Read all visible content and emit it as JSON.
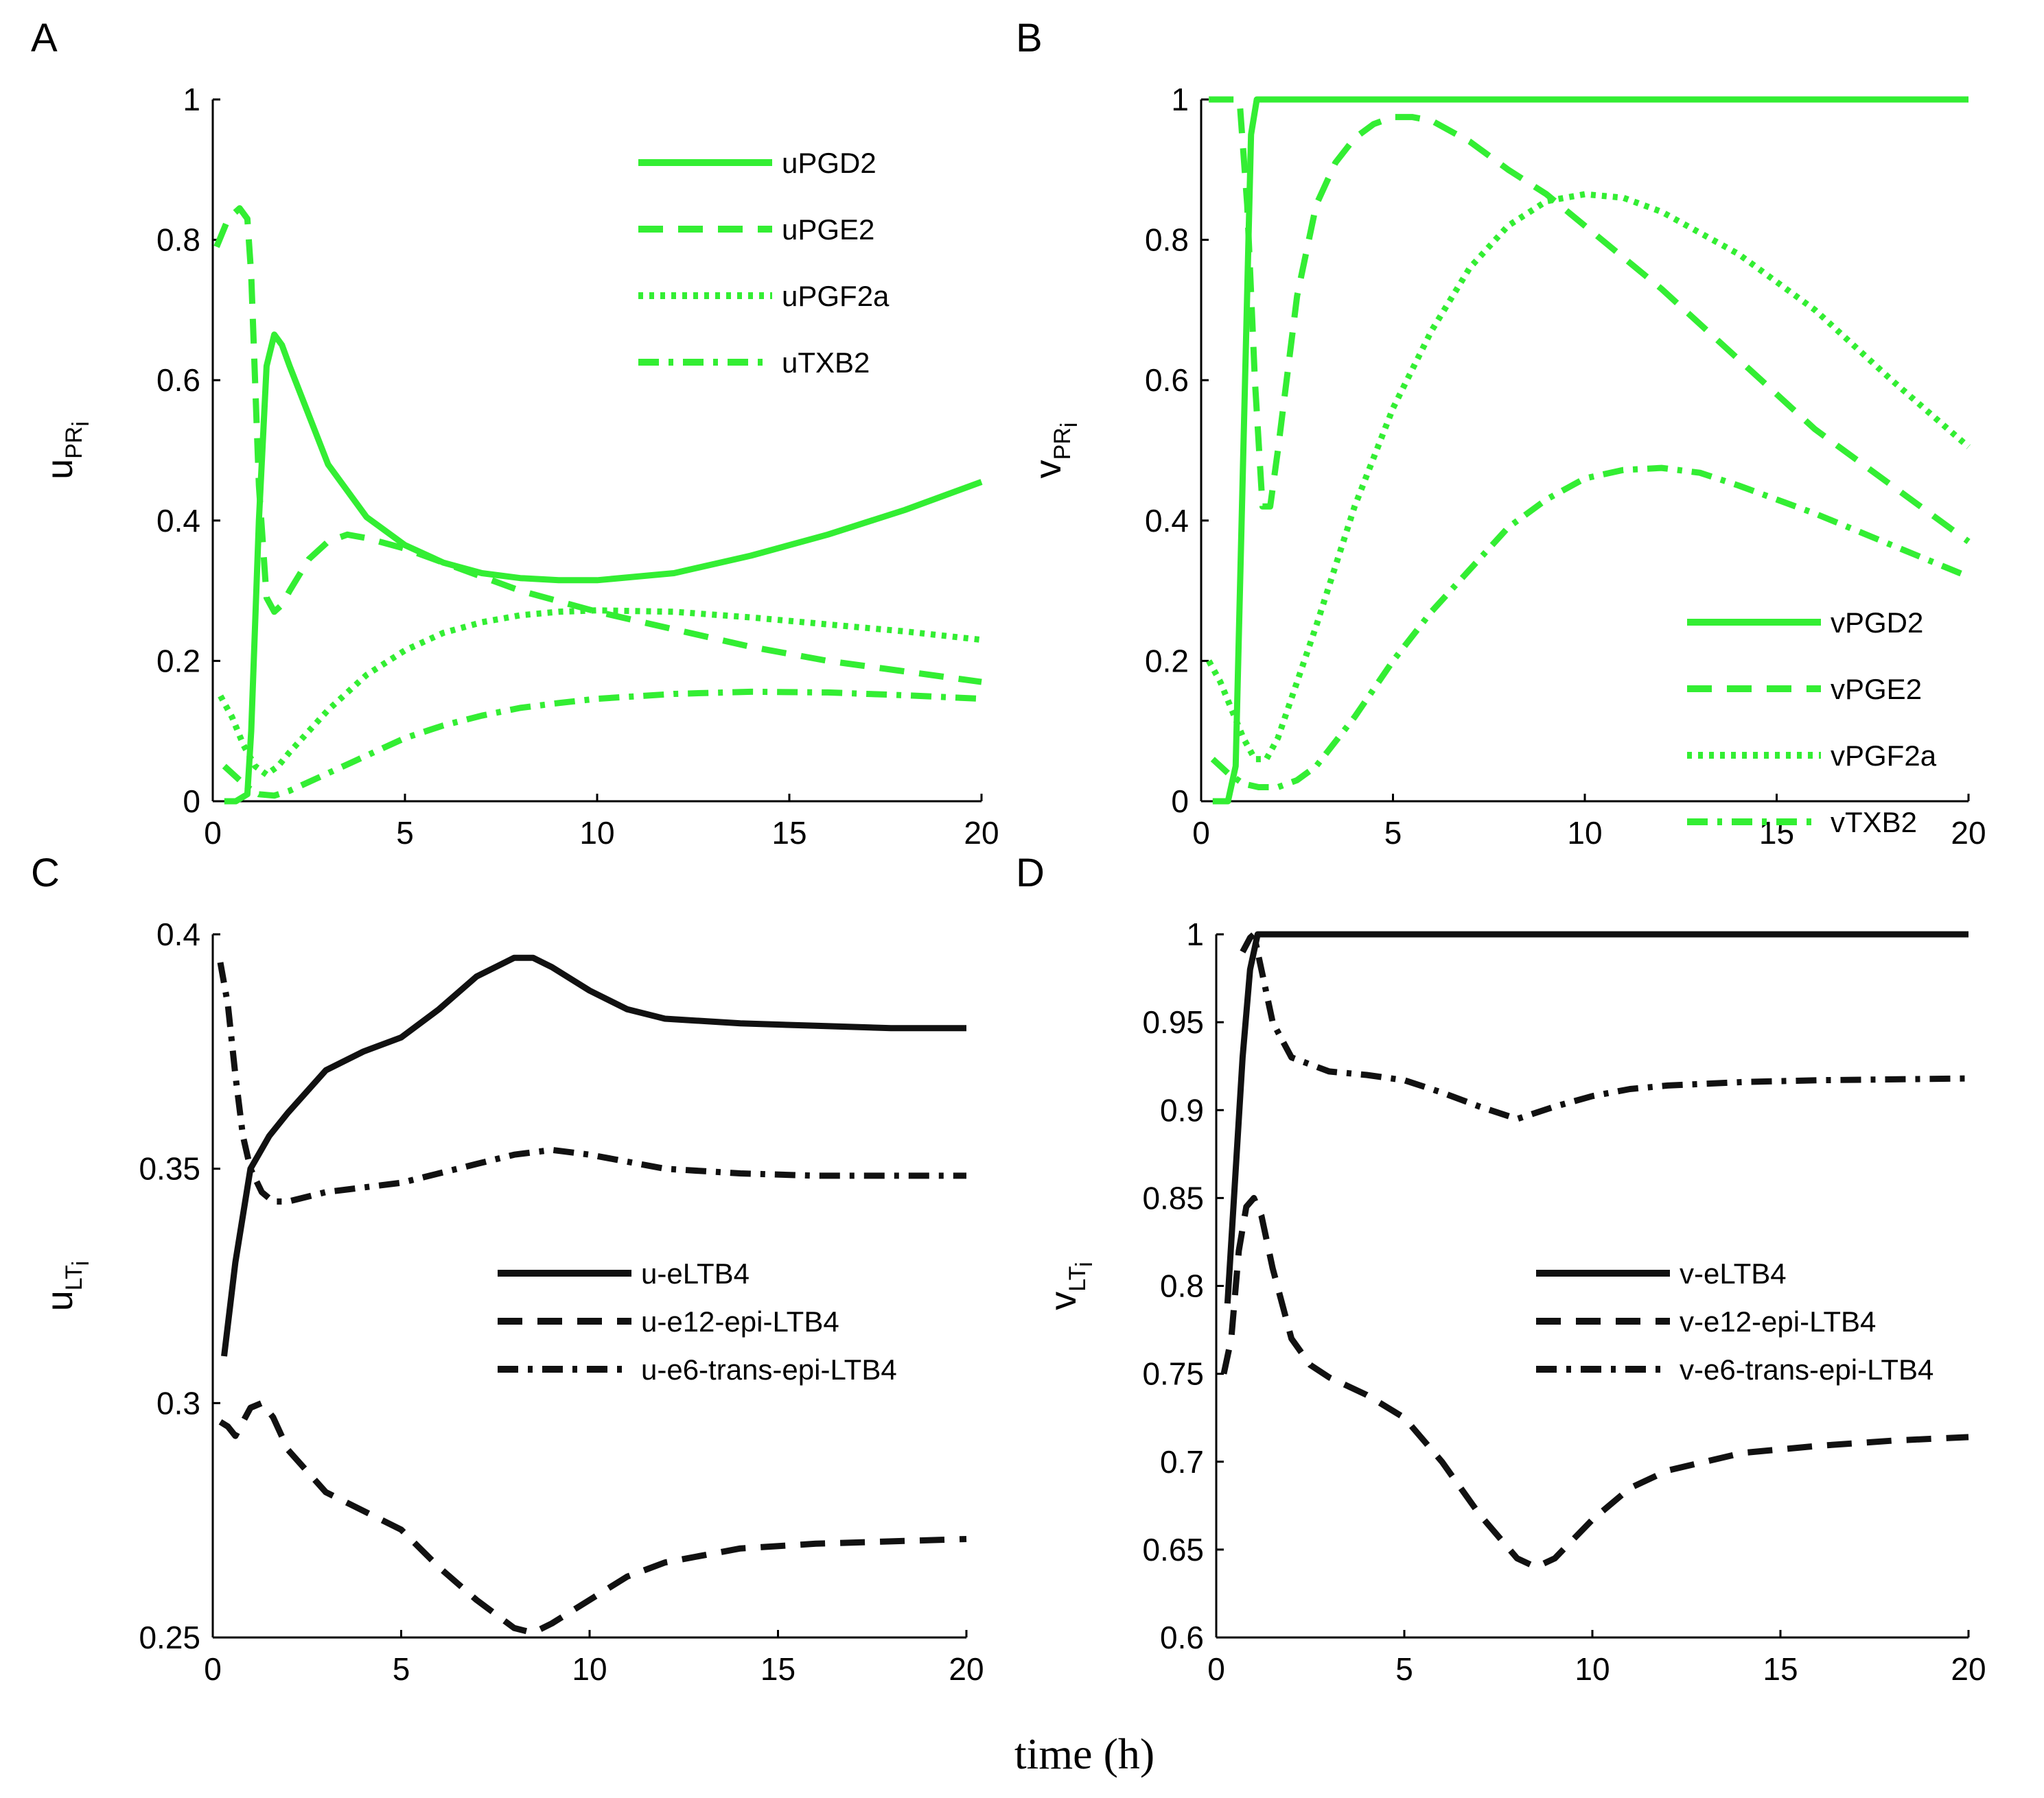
{
  "figure": {
    "xlabel": "time (h)"
  },
  "colors": {
    "green": "#33ee33",
    "black": "#111111"
  },
  "chart_data": [
    {
      "type": "line",
      "panel": "A",
      "ylabel": "u",
      "ylabel_sub": "PR",
      "ylabel_subsub": "i",
      "xlim": [
        0,
        20
      ],
      "ylim": [
        0,
        1
      ],
      "xticks": [
        0,
        5,
        10,
        15,
        20
      ],
      "yticks": [
        0,
        0.2,
        0.4,
        0.6,
        0.8,
        1
      ],
      "ytick_labels": [
        "0",
        "0.2",
        "0.4",
        "0.6",
        "0.8",
        "1"
      ],
      "color": "#33ee33",
      "legend": "top-right",
      "series": [
        {
          "name": "uPGD2",
          "style": "solid",
          "x": [
            0.3,
            0.6,
            0.9,
            1.0,
            1.2,
            1.4,
            1.6,
            1.8,
            2,
            2.5,
            3,
            4,
            5,
            6,
            7,
            8,
            9,
            10,
            12,
            14,
            16,
            18,
            20
          ],
          "y": [
            0.0,
            0.0,
            0.01,
            0.1,
            0.4,
            0.62,
            0.665,
            0.65,
            0.62,
            0.55,
            0.48,
            0.405,
            0.365,
            0.34,
            0.325,
            0.318,
            0.315,
            0.315,
            0.325,
            0.35,
            0.38,
            0.415,
            0.455
          ]
        },
        {
          "name": "uPGE2",
          "style": "dashed",
          "x": [
            0.1,
            0.4,
            0.7,
            0.9,
            1.0,
            1.1,
            1.2,
            1.4,
            1.6,
            1.8,
            2,
            2.5,
            3,
            3.5,
            4,
            5,
            6,
            8,
            10,
            12,
            14,
            16,
            18,
            20
          ],
          "y": [
            0.79,
            0.83,
            0.845,
            0.83,
            0.75,
            0.6,
            0.45,
            0.29,
            0.27,
            0.28,
            0.3,
            0.345,
            0.37,
            0.38,
            0.375,
            0.36,
            0.34,
            0.3,
            0.27,
            0.245,
            0.22,
            0.2,
            0.185,
            0.17
          ]
        },
        {
          "name": "uPGF2a",
          "style": "dotted",
          "x": [
            0.2,
            0.5,
            0.8,
            1.1,
            1.4,
            1.7,
            2,
            2.5,
            3,
            4,
            5,
            6,
            7,
            8,
            9,
            10,
            12,
            14,
            16,
            18,
            20
          ],
          "y": [
            0.15,
            0.12,
            0.08,
            0.05,
            0.038,
            0.05,
            0.07,
            0.1,
            0.13,
            0.18,
            0.215,
            0.24,
            0.255,
            0.265,
            0.27,
            0.272,
            0.27,
            0.262,
            0.252,
            0.242,
            0.23
          ]
        },
        {
          "name": "uTXB2",
          "style": "dashdot",
          "x": [
            0.3,
            0.6,
            0.9,
            1.2,
            1.6,
            2,
            3,
            4,
            5,
            6,
            7,
            8,
            9,
            10,
            12,
            14,
            16,
            18,
            20
          ],
          "y": [
            0.05,
            0.035,
            0.02,
            0.01,
            0.008,
            0.015,
            0.04,
            0.065,
            0.09,
            0.108,
            0.122,
            0.133,
            0.14,
            0.146,
            0.153,
            0.156,
            0.155,
            0.151,
            0.146
          ]
        }
      ]
    },
    {
      "type": "line",
      "panel": "B",
      "ylabel": "v",
      "ylabel_sub": "PR",
      "ylabel_subsub": "i",
      "xlim": [
        0,
        20
      ],
      "ylim": [
        0,
        1
      ],
      "xticks": [
        0,
        5,
        10,
        15,
        20
      ],
      "yticks": [
        0,
        0.2,
        0.4,
        0.6,
        0.8,
        1
      ],
      "ytick_labels": [
        "0",
        "0.2",
        "0.4",
        "0.6",
        "0.8",
        "1"
      ],
      "color": "#33ee33",
      "legend": "bottom-right",
      "series": [
        {
          "name": "vPGD2",
          "style": "solid",
          "x": [
            0.3,
            0.7,
            0.9,
            1.1,
            1.3,
            1.45,
            2,
            5,
            10,
            15,
            20
          ],
          "y": [
            0.0,
            0.0,
            0.05,
            0.5,
            0.95,
            1.0,
            1.0,
            1.0,
            1.0,
            1.0,
            1.0
          ]
        },
        {
          "name": "vPGE2",
          "style": "dashed",
          "x": [
            0.2,
            0.6,
            1.0,
            1.2,
            1.4,
            1.6,
            1.8,
            2,
            2.5,
            3,
            3.5,
            4,
            4.5,
            5,
            5.5,
            6,
            7,
            8,
            9,
            10,
            12,
            14,
            16,
            18,
            20
          ],
          "y": [
            1.0,
            1.0,
            1.0,
            0.85,
            0.6,
            0.42,
            0.42,
            0.5,
            0.72,
            0.85,
            0.91,
            0.945,
            0.965,
            0.975,
            0.975,
            0.97,
            0.94,
            0.9,
            0.865,
            0.82,
            0.73,
            0.63,
            0.53,
            0.45,
            0.37
          ]
        },
        {
          "name": "vPGF2a",
          "style": "dotted",
          "x": [
            0.2,
            0.5,
            0.8,
            1.1,
            1.4,
            1.7,
            2,
            3,
            4,
            5,
            6,
            7,
            8,
            9,
            10,
            11,
            12,
            14,
            16,
            18,
            20
          ],
          "y": [
            0.2,
            0.17,
            0.13,
            0.09,
            0.06,
            0.06,
            0.09,
            0.25,
            0.42,
            0.56,
            0.67,
            0.76,
            0.82,
            0.855,
            0.865,
            0.86,
            0.84,
            0.78,
            0.7,
            0.6,
            0.505
          ]
        },
        {
          "name": "vTXB2",
          "style": "dashdot",
          "x": [
            0.3,
            0.7,
            1.1,
            1.5,
            2,
            2.5,
            3,
            4,
            5,
            6,
            7,
            8,
            9,
            10,
            11,
            12,
            13,
            14,
            16,
            18,
            20
          ],
          "y": [
            0.06,
            0.04,
            0.025,
            0.02,
            0.02,
            0.03,
            0.05,
            0.12,
            0.2,
            0.27,
            0.33,
            0.39,
            0.43,
            0.46,
            0.472,
            0.475,
            0.468,
            0.45,
            0.41,
            0.365,
            0.32
          ]
        }
      ]
    },
    {
      "type": "line",
      "panel": "C",
      "ylabel": "u",
      "ylabel_sub": "LT",
      "ylabel_subsub": "i",
      "xlim": [
        0,
        20
      ],
      "ylim": [
        0.25,
        0.4
      ],
      "xticks": [
        0,
        5,
        10,
        15,
        20
      ],
      "yticks": [
        0.25,
        0.3,
        0.35,
        0.4
      ],
      "ytick_labels": [
        "0.25",
        "0.3",
        "0.35",
        "0.4"
      ],
      "color": "#111111",
      "legend": "center-right",
      "series": [
        {
          "name": "u-eLTB4",
          "style": "solid",
          "x": [
            0.3,
            0.6,
            1.0,
            1.5,
            2,
            3,
            4,
            5,
            6,
            7,
            8,
            8.5,
            9,
            10,
            11,
            12,
            14,
            16,
            18,
            20
          ],
          "y": [
            0.31,
            0.33,
            0.35,
            0.357,
            0.362,
            0.371,
            0.375,
            0.378,
            0.384,
            0.391,
            0.395,
            0.395,
            0.393,
            0.388,
            0.384,
            0.382,
            0.381,
            0.3805,
            0.38,
            0.38
          ]
        },
        {
          "name": "u-e12-epi-LTB4",
          "style": "dashed",
          "x": [
            0.2,
            0.4,
            0.6,
            0.8,
            1.0,
            1.3,
            1.6,
            2,
            3,
            4,
            5,
            6,
            7,
            8,
            8.5,
            9,
            10,
            11,
            12,
            14,
            16,
            18,
            20
          ],
          "y": [
            0.296,
            0.295,
            0.293,
            0.296,
            0.299,
            0.3,
            0.297,
            0.29,
            0.281,
            0.277,
            0.273,
            0.265,
            0.258,
            0.252,
            0.251,
            0.253,
            0.258,
            0.263,
            0.266,
            0.269,
            0.27,
            0.2705,
            0.271
          ]
        },
        {
          "name": "u-e6-trans-epi-LTB4",
          "style": "dashdot",
          "x": [
            0.2,
            0.4,
            0.6,
            0.8,
            1.0,
            1.3,
            1.6,
            2,
            3,
            4,
            5,
            6,
            7,
            8,
            9,
            10,
            12,
            14,
            16,
            18,
            20
          ],
          "y": [
            0.394,
            0.385,
            0.37,
            0.357,
            0.35,
            0.345,
            0.343,
            0.343,
            0.345,
            0.346,
            0.347,
            0.349,
            0.351,
            0.353,
            0.354,
            0.353,
            0.35,
            0.349,
            0.3485,
            0.3485,
            0.3485
          ]
        }
      ]
    },
    {
      "type": "line",
      "panel": "D",
      "ylabel": "v",
      "ylabel_sub": "LT",
      "ylabel_subsub": "i",
      "xlim": [
        0,
        20
      ],
      "ylim": [
        0.6,
        1
      ],
      "xticks": [
        0,
        5,
        10,
        15,
        20
      ],
      "yticks": [
        0.6,
        0.65,
        0.7,
        0.75,
        0.8,
        0.85,
        0.9,
        0.95,
        1
      ],
      "ytick_labels": [
        "0.6",
        "0.65",
        "0.7",
        "0.75",
        "0.8",
        "0.85",
        "0.9",
        "0.95",
        "1"
      ],
      "color": "#111111",
      "legend": "center-right",
      "series": [
        {
          "name": "v-eLTB4",
          "style": "solid",
          "x": [
            0.3,
            0.5,
            0.7,
            0.9,
            1.1,
            1.3,
            2,
            5,
            10,
            15,
            20
          ],
          "y": [
            0.79,
            0.86,
            0.93,
            0.98,
            1.0,
            1.0,
            1.0,
            1.0,
            1.0,
            1.0,
            1.0
          ]
        },
        {
          "name": "v-e12-epi-LTB4",
          "style": "dashed",
          "x": [
            0.2,
            0.4,
            0.6,
            0.8,
            1.0,
            1.2,
            1.5,
            2,
            2.5,
            3,
            4,
            5,
            6,
            7,
            8,
            8.5,
            9,
            10,
            11,
            12,
            14,
            16,
            18,
            20
          ],
          "y": [
            0.75,
            0.77,
            0.82,
            0.845,
            0.85,
            0.84,
            0.81,
            0.77,
            0.755,
            0.748,
            0.738,
            0.725,
            0.7,
            0.67,
            0.645,
            0.64,
            0.645,
            0.667,
            0.685,
            0.695,
            0.705,
            0.709,
            0.712,
            0.714
          ]
        },
        {
          "name": "v-e6-trans-epi-LTB4",
          "style": "dashdot",
          "x": [
            0.7,
            0.9,
            1.0,
            1.2,
            1.5,
            2,
            3,
            4,
            5,
            6,
            7,
            8,
            9,
            10,
            11,
            12,
            14,
            16,
            18,
            20
          ],
          "y": [
            0.99,
            0.998,
            1.0,
            0.98,
            0.95,
            0.93,
            0.922,
            0.92,
            0.917,
            0.91,
            0.902,
            0.895,
            0.902,
            0.908,
            0.912,
            0.914,
            0.916,
            0.917,
            0.9175,
            0.918
          ]
        }
      ]
    }
  ]
}
